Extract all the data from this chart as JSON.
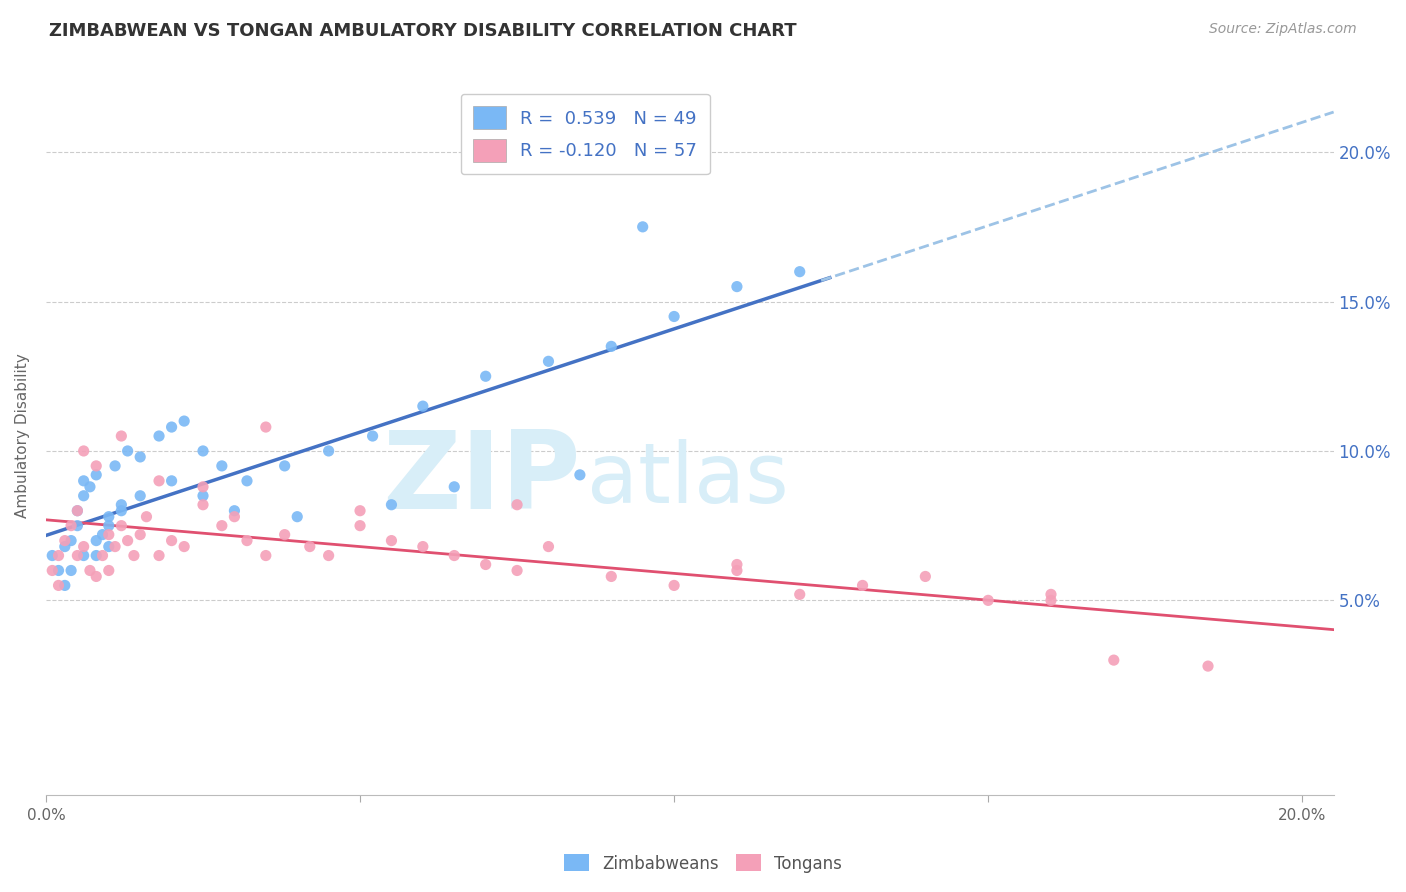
{
  "title": "ZIMBABWEAN VS TONGAN AMBULATORY DISABILITY CORRELATION CHART",
  "source_text": "Source: ZipAtlas.com",
  "ylabel": "Ambulatory Disability",
  "xlim": [
    0.0,
    0.205
  ],
  "ylim": [
    -0.015,
    0.225
  ],
  "xticks": [
    0.0,
    0.05,
    0.1,
    0.15,
    0.2
  ],
  "xticklabels": [
    "0.0%",
    "",
    "",
    "",
    "20.0%"
  ],
  "yticks_right": [
    0.05,
    0.1,
    0.15,
    0.2
  ],
  "yticklabels_right": [
    "5.0%",
    "10.0%",
    "15.0%",
    "20.0%"
  ],
  "legend_R1": "R =  0.539",
  "legend_N1": "N = 49",
  "legend_R2": "R = -0.120",
  "legend_N2": "N = 57",
  "zim_color": "#7ab8f5",
  "ton_color": "#f4a0b8",
  "zim_trend_color": "#4472c4",
  "zim_trend_dashed_color": "#9dc3e6",
  "ton_trend_color": "#e05070",
  "watermark_zip": "ZIP",
  "watermark_atlas": "atlas",
  "watermark_color": "#d8eef8",
  "bg_color": "#ffffff",
  "grid_color": "#cccccc",
  "title_color": "#333333",
  "right_tick_color": "#4472c4",
  "title_fontsize": 13,
  "source_fontsize": 10,
  "zim_x": [
    0.001,
    0.002,
    0.003,
    0.004,
    0.005,
    0.005,
    0.006,
    0.006,
    0.007,
    0.008,
    0.008,
    0.009,
    0.01,
    0.01,
    0.011,
    0.012,
    0.013,
    0.015,
    0.018,
    0.02,
    0.022,
    0.025,
    0.028,
    0.032,
    0.038,
    0.045,
    0.052,
    0.06,
    0.07,
    0.08,
    0.09,
    0.1,
    0.11,
    0.12,
    0.003,
    0.004,
    0.006,
    0.008,
    0.01,
    0.012,
    0.015,
    0.02,
    0.025,
    0.03,
    0.04,
    0.055,
    0.065,
    0.085,
    0.095
  ],
  "zim_y": [
    0.065,
    0.06,
    0.068,
    0.07,
    0.075,
    0.08,
    0.085,
    0.09,
    0.088,
    0.092,
    0.065,
    0.072,
    0.078,
    0.068,
    0.095,
    0.082,
    0.1,
    0.098,
    0.105,
    0.108,
    0.11,
    0.1,
    0.095,
    0.09,
    0.095,
    0.1,
    0.105,
    0.115,
    0.125,
    0.13,
    0.135,
    0.145,
    0.155,
    0.16,
    0.055,
    0.06,
    0.065,
    0.07,
    0.075,
    0.08,
    0.085,
    0.09,
    0.085,
    0.08,
    0.078,
    0.082,
    0.088,
    0.092,
    0.175
  ],
  "ton_x": [
    0.001,
    0.002,
    0.002,
    0.003,
    0.004,
    0.005,
    0.005,
    0.006,
    0.007,
    0.008,
    0.009,
    0.01,
    0.01,
    0.011,
    0.012,
    0.013,
    0.014,
    0.015,
    0.016,
    0.018,
    0.02,
    0.022,
    0.025,
    0.028,
    0.03,
    0.032,
    0.035,
    0.038,
    0.042,
    0.045,
    0.05,
    0.055,
    0.06,
    0.065,
    0.07,
    0.075,
    0.08,
    0.09,
    0.1,
    0.11,
    0.12,
    0.13,
    0.14,
    0.15,
    0.16,
    0.17,
    0.185,
    0.006,
    0.008,
    0.012,
    0.018,
    0.025,
    0.035,
    0.05,
    0.075,
    0.11,
    0.16
  ],
  "ton_y": [
    0.06,
    0.055,
    0.065,
    0.07,
    0.075,
    0.08,
    0.065,
    0.068,
    0.06,
    0.058,
    0.065,
    0.072,
    0.06,
    0.068,
    0.075,
    0.07,
    0.065,
    0.072,
    0.078,
    0.065,
    0.07,
    0.068,
    0.082,
    0.075,
    0.078,
    0.07,
    0.065,
    0.072,
    0.068,
    0.065,
    0.075,
    0.07,
    0.068,
    0.065,
    0.062,
    0.06,
    0.068,
    0.058,
    0.055,
    0.06,
    0.052,
    0.055,
    0.058,
    0.05,
    0.052,
    0.03,
    0.028,
    0.1,
    0.095,
    0.105,
    0.09,
    0.088,
    0.108,
    0.08,
    0.082,
    0.062,
    0.05
  ]
}
